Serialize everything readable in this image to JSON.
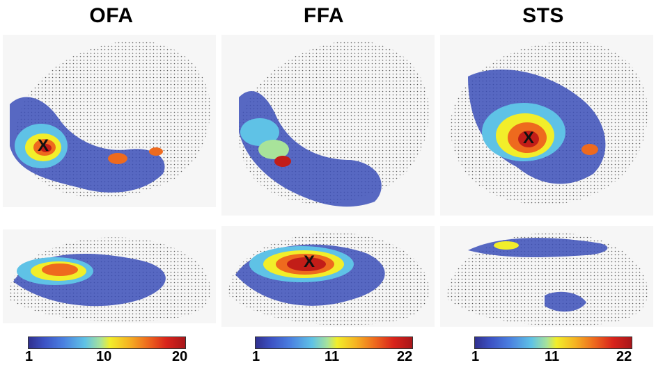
{
  "columns": [
    {
      "title": "OFA",
      "scale": {
        "min": "1",
        "mid": "10",
        "max": "20"
      }
    },
    {
      "title": "FFA",
      "scale": {
        "min": "1",
        "mid": "11",
        "max": "22"
      }
    },
    {
      "title": "STS",
      "scale": {
        "min": "1",
        "mid": "11",
        "max": "22"
      }
    }
  ],
  "marker_label": "X",
  "colors": {
    "low": "#3b4fb8",
    "mid_low": "#5fc2e6",
    "mid": "#f2ee2a",
    "high": "#ee6a1e",
    "max": "#c21d18",
    "dots": "#444444"
  }
}
